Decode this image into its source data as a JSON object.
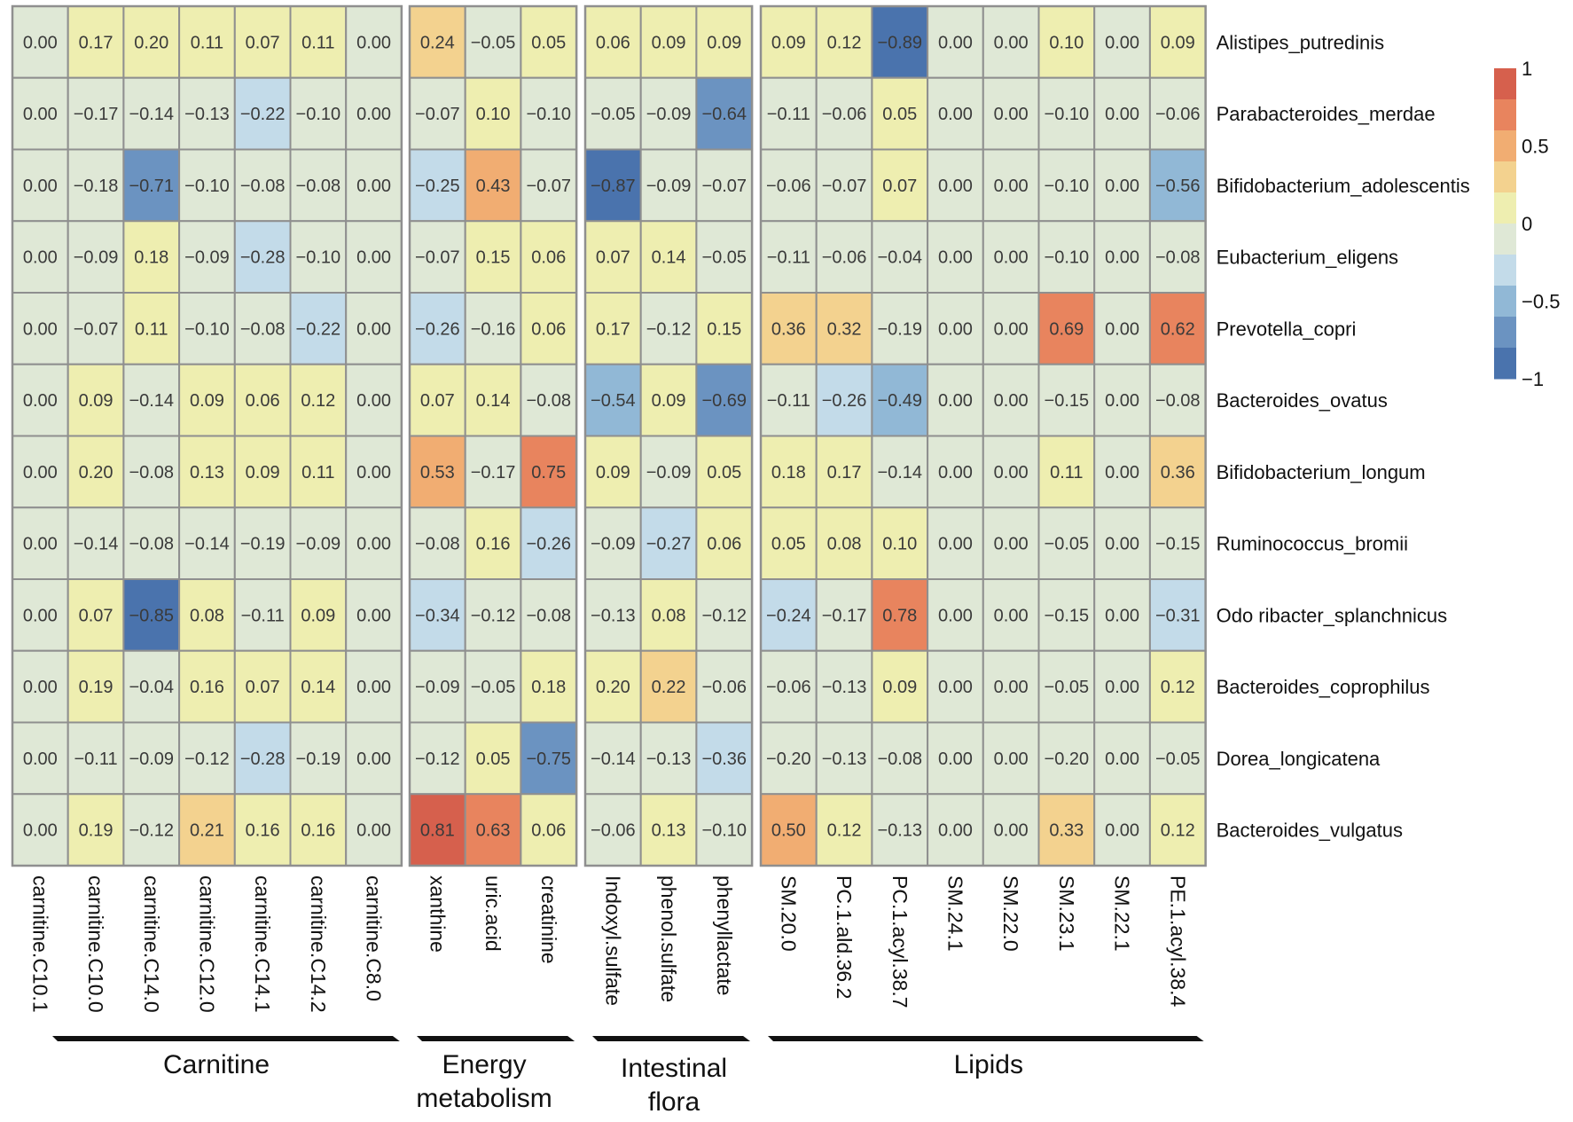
{
  "chart_data": {
    "type": "heatmap",
    "title": "",
    "rows": [
      "Alistipes_putredinis",
      "Parabacteroides_merdae",
      "Bifidobacterium_adolescentis",
      "Eubacterium_eligens",
      "Prevotella_copri",
      "Bacteroides_ovatus",
      "Bifidobacterium_longum",
      "Ruminococcus_bromii",
      "Odo ribacter_splanchnicus",
      "Bacteroides_coprophilus",
      "Dorea_longicatena",
      "Bacteroides_vulgatus"
    ],
    "groups": [
      {
        "name": "Carnitine",
        "label_lines": [
          "Carnitine"
        ],
        "columns": [
          "carnitine.C10.1",
          "carnitine.C10.0",
          "carnitine.C14.0",
          "carnitine.C12.0",
          "carnitine.C14.1",
          "carnitine.C14.2",
          "carnitine.C8.0"
        ],
        "values": [
          [
            0.0,
            0.17,
            0.2,
            0.11,
            0.07,
            0.11,
            0.0
          ],
          [
            0.0,
            -0.17,
            -0.14,
            -0.13,
            -0.22,
            -0.1,
            0.0
          ],
          [
            0.0,
            -0.18,
            -0.71,
            -0.1,
            -0.08,
            -0.08,
            0.0
          ],
          [
            0.0,
            -0.09,
            0.18,
            -0.09,
            -0.28,
            -0.1,
            0.0
          ],
          [
            0.0,
            -0.07,
            0.11,
            -0.1,
            -0.08,
            -0.22,
            0.0
          ],
          [
            0.0,
            0.09,
            -0.14,
            0.09,
            0.06,
            0.12,
            0.0
          ],
          [
            0.0,
            0.2,
            -0.08,
            0.13,
            0.09,
            0.11,
            0.0
          ],
          [
            0.0,
            -0.14,
            -0.08,
            -0.14,
            -0.19,
            -0.09,
            0.0
          ],
          [
            0.0,
            0.07,
            -0.85,
            0.08,
            -0.11,
            0.09,
            0.0
          ],
          [
            0.0,
            0.19,
            -0.04,
            0.16,
            0.07,
            0.14,
            0.0
          ],
          [
            0.0,
            -0.11,
            -0.09,
            -0.12,
            -0.28,
            -0.19,
            0.0
          ],
          [
            0.0,
            0.19,
            -0.12,
            0.21,
            0.16,
            0.16,
            0.0
          ]
        ]
      },
      {
        "name": "Energy metabolism",
        "label_lines": [
          "Energy",
          "metabolism"
        ],
        "columns": [
          "xanthine",
          "uric.acid",
          "creatinine"
        ],
        "values": [
          [
            0.24,
            -0.05,
            0.05
          ],
          [
            -0.07,
            0.1,
            -0.1
          ],
          [
            -0.25,
            0.43,
            -0.07
          ],
          [
            -0.07,
            0.15,
            0.06
          ],
          [
            -0.26,
            -0.16,
            0.06
          ],
          [
            0.07,
            0.14,
            -0.08
          ],
          [
            0.53,
            -0.17,
            0.75
          ],
          [
            -0.08,
            0.16,
            -0.26
          ],
          [
            -0.34,
            -0.12,
            -0.08
          ],
          [
            -0.09,
            -0.05,
            0.18
          ],
          [
            -0.12,
            0.05,
            -0.75
          ],
          [
            0.81,
            0.63,
            0.06
          ]
        ]
      },
      {
        "name": "Intestinal flora",
        "label_lines": [
          "Intestinal",
          "flora"
        ],
        "columns": [
          "Indoxyl.sulfate",
          "phenol.sulfate",
          "phenyllactate"
        ],
        "values": [
          [
            0.06,
            0.09,
            0.09
          ],
          [
            -0.05,
            -0.09,
            -0.64
          ],
          [
            -0.87,
            -0.09,
            -0.07
          ],
          [
            0.07,
            0.14,
            -0.05
          ],
          [
            0.17,
            -0.12,
            0.15
          ],
          [
            -0.54,
            0.09,
            -0.69
          ],
          [
            0.09,
            -0.09,
            0.05
          ],
          [
            -0.09,
            -0.27,
            0.06
          ],
          [
            -0.13,
            0.08,
            -0.12
          ],
          [
            0.2,
            0.22,
            -0.06
          ],
          [
            -0.14,
            -0.13,
            -0.36
          ],
          [
            -0.06,
            0.13,
            -0.1
          ]
        ]
      },
      {
        "name": "Lipids",
        "label_lines": [
          "Lipids"
        ],
        "columns": [
          "SM.20.0",
          "PC.1.ald.36.2",
          "PC.1.acyl.38.7",
          "SM.24.1",
          "SM.22.0",
          "SM.23.1",
          "SM.22.1",
          "PE.1.acyl.38.4"
        ],
        "values": [
          [
            0.09,
            0.12,
            -0.89,
            0.0,
            0.0,
            0.1,
            0.0,
            0.09
          ],
          [
            -0.11,
            -0.06,
            0.05,
            0.0,
            0.0,
            -0.1,
            0.0,
            -0.06
          ],
          [
            -0.06,
            -0.07,
            0.07,
            0.0,
            0.0,
            -0.1,
            0.0,
            -0.56
          ],
          [
            -0.11,
            -0.06,
            -0.04,
            0.0,
            0.0,
            -0.1,
            0.0,
            -0.08
          ],
          [
            0.36,
            0.32,
            -0.19,
            0.0,
            0.0,
            0.69,
            0.0,
            0.62
          ],
          [
            -0.11,
            -0.26,
            -0.49,
            0.0,
            0.0,
            -0.15,
            0.0,
            -0.08
          ],
          [
            0.18,
            0.17,
            -0.14,
            0.0,
            0.0,
            0.11,
            0.0,
            0.36
          ],
          [
            0.05,
            0.08,
            0.1,
            0.0,
            0.0,
            -0.05,
            0.0,
            -0.15
          ],
          [
            -0.24,
            -0.17,
            0.78,
            0.0,
            0.0,
            -0.15,
            0.0,
            -0.31
          ],
          [
            -0.06,
            -0.13,
            0.09,
            0.0,
            0.0,
            -0.05,
            0.0,
            0.12
          ],
          [
            -0.2,
            -0.13,
            -0.08,
            0.0,
            0.0,
            -0.2,
            0.0,
            -0.05
          ],
          [
            0.5,
            0.12,
            -0.13,
            0.0,
            0.0,
            0.33,
            0.0,
            0.12
          ]
        ]
      }
    ],
    "colorbar": {
      "range": [
        -1,
        1
      ],
      "ticks": [
        1,
        0.5,
        0,
        -0.5,
        -1
      ],
      "tick_labels": [
        "1",
        "0.5",
        "0",
        "−0.5",
        "−1"
      ],
      "bins": 10,
      "colors_high_to_low": [
        "#d6604d",
        "#e8845e",
        "#f1ad72",
        "#f3d28f",
        "#eeeeb0",
        "#dfe8d6",
        "#c3dbe9",
        "#91b8d6",
        "#6b93c1",
        "#4a73ad"
      ],
      "placement": "right"
    },
    "cell_text_format": "2 decimals, minus sign −",
    "grid": true
  }
}
